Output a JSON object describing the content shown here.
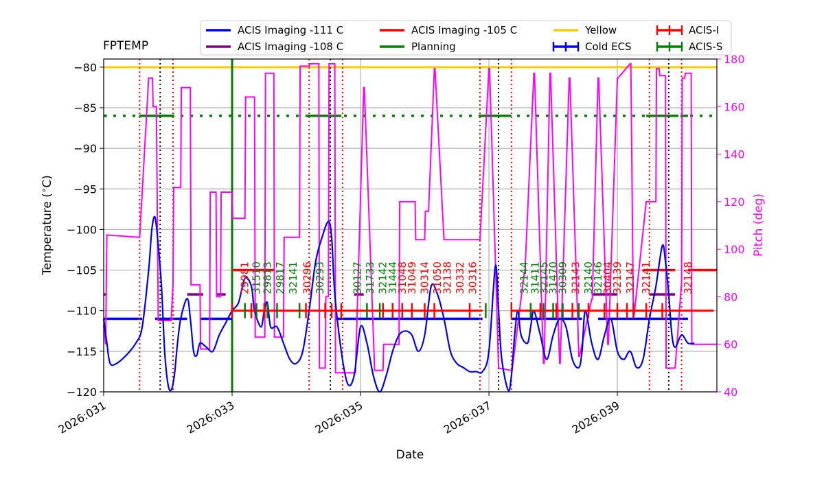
{
  "chart_data": {
    "type": "line",
    "title": "FPTEMP",
    "xlabel": "Date",
    "ylabel": "Temperature ($^\\circ$C)",
    "y2label": "Pitch (deg)",
    "xlim": [
      31.0,
      40.55
    ],
    "ylim": [
      -120,
      -79
    ],
    "y2lim": [
      40,
      180
    ],
    "x_ticks": [
      {
        "value": 31,
        "label": "2026:031"
      },
      {
        "value": 33,
        "label": "2026:033"
      },
      {
        "value": 35,
        "label": "2026:035"
      },
      {
        "value": 37,
        "label": "2026:037"
      },
      {
        "value": 39,
        "label": "2026:039"
      }
    ],
    "y_ticks": [
      -80,
      -85,
      -90,
      -95,
      -100,
      -105,
      -110,
      -115,
      -120
    ],
    "y2_ticks": [
      40,
      60,
      80,
      100,
      120,
      140,
      160,
      180
    ],
    "colors": {
      "temperature": "#0000ee",
      "pitch": "#ff00ff",
      "yellow": "#ffcc00",
      "planning": "#008000",
      "acis_111": "#0000ee",
      "acis_108": "#800080",
      "acis_105": "#ff0000",
      "acis_i": "#ff0000",
      "acis_s": "#008000",
      "grid": "#b0b0b0"
    },
    "legend": [
      {
        "label": "ACIS Imaging -111 C",
        "color": "#0000ee",
        "style": "line"
      },
      {
        "label": "ACIS Imaging -108 C",
        "color": "#800080",
        "style": "line"
      },
      {
        "label": "ACIS Imaging -105 C",
        "color": "#ff0000",
        "style": "line"
      },
      {
        "label": "Planning",
        "color": "#008000",
        "style": "line"
      },
      {
        "label": "Yellow",
        "color": "#ffcc00",
        "style": "line"
      },
      {
        "label": "Cold ECS",
        "color": "#0000ee",
        "style": "errorbar"
      },
      {
        "label": "ACIS-I",
        "color": "#ff0000",
        "style": "errorbar"
      },
      {
        "label": "ACIS-S",
        "color": "#008000",
        "style": "errorbar"
      }
    ],
    "yellow_limit": -80,
    "planning_limit_vline": 33.0,
    "temperature_series": {
      "name": "FPTEMP",
      "x": [
        31.0,
        31.05,
        31.1,
        31.2,
        31.35,
        31.5,
        31.6,
        31.7,
        31.75,
        31.8,
        31.85,
        31.9,
        31.95,
        32.0,
        32.05,
        32.1,
        32.15,
        32.2,
        32.3,
        32.35,
        32.4,
        32.45,
        32.5,
        32.6,
        32.7,
        32.8,
        32.9,
        33.0,
        33.1,
        33.2,
        33.3,
        33.35,
        33.45,
        33.5,
        33.55,
        33.6,
        33.7,
        33.8,
        33.9,
        34.0,
        34.1,
        34.2,
        34.3,
        34.4,
        34.5,
        34.55,
        34.6,
        34.7,
        34.8,
        34.9,
        35.0,
        35.1,
        35.2,
        35.3,
        35.4,
        35.5,
        35.6,
        35.7,
        35.8,
        35.9,
        36.0,
        36.1,
        36.2,
        36.3,
        36.4,
        36.5,
        36.6,
        36.7,
        36.8,
        36.9,
        37.0,
        37.1,
        37.15,
        37.2,
        37.3,
        37.35,
        37.4,
        37.45,
        37.5,
        37.6,
        37.65,
        37.7,
        37.8,
        37.9,
        38.0,
        38.1,
        38.2,
        38.3,
        38.4,
        38.45,
        38.5,
        38.6,
        38.7,
        38.8,
        38.9,
        39.0,
        39.1,
        39.2,
        39.3,
        39.4,
        39.5,
        39.6,
        39.7,
        39.75,
        39.8,
        39.85,
        39.9,
        40.0,
        40.1,
        40.2
      ],
      "y": [
        -111,
        -114,
        -116.5,
        -116.5,
        -115.5,
        -114,
        -112,
        -105,
        -100,
        -98.5,
        -102,
        -107,
        -115,
        -119,
        -119.8,
        -118,
        -114,
        -111,
        -108.5,
        -111,
        -115,
        -115.5,
        -114,
        -114.5,
        -115,
        -113,
        -111.5,
        -110,
        -109,
        -106,
        -107,
        -110,
        -112,
        -110,
        -109,
        -112,
        -112,
        -114,
        -116,
        -116.5,
        -115,
        -110,
        -104,
        -101,
        -99,
        -101,
        -108,
        -115,
        -119,
        -118,
        -112,
        -114,
        -118,
        -120,
        -118,
        -115,
        -113,
        -112.5,
        -113,
        -115,
        -113,
        -107,
        -108,
        -111,
        -115,
        -116.5,
        -117,
        -117.5,
        -117.5,
        -117.5,
        -115,
        -104.5,
        -110,
        -116,
        -119.8,
        -118,
        -113,
        -110,
        -113,
        -114,
        -112,
        -110,
        -113,
        -116,
        -113,
        -111,
        -112,
        -116,
        -117,
        -115,
        -110,
        -114,
        -116,
        -113,
        -111,
        -115,
        -116,
        -115,
        -117,
        -116,
        -111,
        -107,
        -102,
        -104,
        -108,
        -113,
        -114.5,
        -113,
        -114,
        -114
      ]
    },
    "pitch_series": {
      "name": "Pitch",
      "x": [
        31.0,
        31.03,
        31.05,
        31.55,
        31.56,
        31.7,
        31.72,
        31.76,
        31.77,
        31.8,
        31.82,
        31.85,
        31.9,
        32.0,
        32.05,
        32.08,
        32.09,
        32.2,
        32.21,
        32.35,
        32.36,
        32.5,
        32.51,
        32.65,
        32.66,
        32.75,
        32.76,
        32.82,
        32.83,
        32.84,
        33.0,
        33.01,
        33.2,
        33.21,
        33.35,
        33.36,
        33.5,
        33.51,
        33.52,
        33.65,
        33.66,
        33.8,
        33.81,
        33.85,
        34.05,
        34.06,
        34.2,
        34.21,
        34.35,
        34.36,
        34.45,
        34.46,
        34.5,
        34.51,
        34.6,
        34.61,
        34.7,
        34.72,
        34.73,
        34.9,
        34.92,
        35.05,
        35.06,
        35.22,
        35.24,
        35.35,
        35.36,
        35.6,
        35.61,
        35.85,
        35.86,
        36.0,
        36.01,
        36.05,
        36.06,
        36.15,
        36.16,
        36.3,
        36.85,
        36.86,
        37.0,
        37.01,
        37.15,
        37.16,
        37.35,
        37.36,
        37.55,
        37.56,
        37.7,
        37.71,
        37.85,
        37.86,
        37.95,
        37.96,
        38.1,
        38.11,
        38.25,
        38.26,
        38.4,
        38.41,
        38.6,
        38.61,
        38.7,
        38.71,
        38.85,
        38.86,
        39.0,
        39.01,
        39.2,
        39.21,
        39.25,
        39.26,
        39.45,
        39.46,
        39.55,
        39.56,
        39.6,
        39.61,
        39.65,
        39.66,
        39.75,
        39.76,
        39.85,
        39.86,
        39.9,
        40.0,
        40.01,
        40.05,
        40.06,
        40.15,
        40.16,
        40.55
      ],
      "y": [
        68,
        60,
        106,
        105,
        105,
        172,
        172,
        172,
        160,
        160,
        160,
        70,
        70,
        70,
        70,
        85,
        126,
        126,
        168,
        168,
        85,
        85,
        58,
        58,
        124,
        124,
        80,
        80,
        124,
        124,
        124,
        113,
        113,
        164,
        164,
        63,
        63,
        63,
        174,
        174,
        63,
        63,
        105,
        105,
        105,
        177,
        177,
        178,
        178,
        50,
        50,
        80,
        80,
        178,
        178,
        48,
        48,
        48,
        48,
        48,
        48,
        168,
        168,
        49,
        49,
        49,
        60,
        60,
        120,
        120,
        104,
        104,
        116,
        116,
        116,
        176,
        176,
        104,
        104,
        104,
        176,
        176,
        50,
        50,
        49,
        49,
        90,
        90,
        174,
        174,
        52,
        52,
        174,
        174,
        52,
        52,
        172,
        172,
        55,
        55,
        79,
        79,
        172,
        172,
        60,
        60,
        172,
        172,
        178,
        178,
        72,
        72,
        120,
        120,
        120,
        120,
        120,
        176,
        176,
        173,
        173,
        50,
        50,
        50,
        50,
        86,
        172,
        172,
        174,
        174,
        60,
        60
      ]
    },
    "acis_111_segments": [
      [
        31.0,
        31.6
      ],
      [
        31.8,
        32.3
      ],
      [
        32.5,
        33.0
      ],
      [
        34.6,
        36.9
      ],
      [
        37.35,
        38.45
      ],
      [
        38.7,
        40.1
      ]
    ],
    "acis_108_segments": [
      [
        31.0,
        31.05
      ],
      [
        32.3,
        32.55
      ],
      [
        32.75,
        32.9
      ],
      [
        34.9,
        35.05
      ],
      [
        38.6,
        39.0
      ],
      [
        39.5,
        39.9
      ]
    ],
    "acis_105_segments": [
      [
        33.0,
        33.65
      ],
      [
        39.4,
        39.9
      ],
      [
        40.1,
        40.55
      ]
    ],
    "planning_segments": [
      [
        31.0,
        31.05
      ],
      [
        31.55,
        32.1
      ],
      [
        34.15,
        34.7
      ],
      [
        36.85,
        37.35
      ],
      [
        39.45,
        39.95
      ],
      [
        40.0,
        40.1
      ]
    ],
    "planning_dotted_range": [
      31.0,
      40.5
    ],
    "yellow_vlines_red": [
      31.56,
      32.08,
      34.2,
      34.72,
      36.86,
      37.35,
      39.5,
      40.0
    ],
    "black_vlines": [
      31.88,
      34.53,
      37.15,
      39.8
    ],
    "acis_i_span": [
      33.0,
      36.9,
      37.35,
      40.5
    ],
    "acis_i_ticks": [
      33.0,
      33.3,
      33.5,
      34.15,
      34.45,
      34.55,
      34.7,
      35.35,
      35.5,
      35.65,
      35.8,
      36.0,
      36.15,
      36.7,
      37.35,
      37.65,
      37.8,
      38.05,
      38.3,
      38.55,
      38.8,
      39.0,
      39.15,
      39.25,
      39.45,
      39.7
    ],
    "acis_s_ticks": [
      33.2,
      33.38,
      33.55,
      33.7,
      34.05,
      35.1,
      35.3,
      36.95,
      37.65,
      37.85,
      38.0,
      38.15,
      38.4
    ],
    "obsids": [
      {
        "x": 33.2,
        "label": "29981",
        "color": "#ff0000"
      },
      {
        "x": 33.38,
        "label": "31510",
        "color": "#008000"
      },
      {
        "x": 33.55,
        "label": "29813",
        "color": "#008000"
      },
      {
        "x": 33.75,
        "label": "29817",
        "color": "#008000"
      },
      {
        "x": 33.95,
        "label": "32141",
        "color": "#008000"
      },
      {
        "x": 34.17,
        "label": "30296",
        "color": "#ff0000"
      },
      {
        "x": 34.37,
        "label": "30293",
        "color": "#008000"
      },
      {
        "x": 34.95,
        "label": "30127",
        "color": "#008000"
      },
      {
        "x": 35.15,
        "label": "31733",
        "color": "#008000"
      },
      {
        "x": 35.35,
        "label": "32142",
        "color": "#008000"
      },
      {
        "x": 35.5,
        "label": "31444",
        "color": "#008000"
      },
      {
        "x": 35.65,
        "label": "31048",
        "color": "#ff0000"
      },
      {
        "x": 35.8,
        "label": "31049",
        "color": "#ff0000"
      },
      {
        "x": 36.0,
        "label": "30314",
        "color": "#ff0000"
      },
      {
        "x": 36.2,
        "label": "31050",
        "color": "#ff0000"
      },
      {
        "x": 36.35,
        "label": "32138",
        "color": "#ff0000"
      },
      {
        "x": 36.55,
        "label": "30332",
        "color": "#ff0000"
      },
      {
        "x": 36.75,
        "label": "30316",
        "color": "#ff0000"
      },
      {
        "x": 37.55,
        "label": "32144",
        "color": "#008000"
      },
      {
        "x": 37.72,
        "label": "31411",
        "color": "#008000"
      },
      {
        "x": 37.86,
        "label": "32145",
        "color": "#008000"
      },
      {
        "x": 38.0,
        "label": "31470",
        "color": "#008000"
      },
      {
        "x": 38.15,
        "label": "30309",
        "color": "#008000"
      },
      {
        "x": 38.35,
        "label": "32143",
        "color": "#ff0000"
      },
      {
        "x": 38.55,
        "label": "32140",
        "color": "#008000"
      },
      {
        "x": 38.7,
        "label": "32146",
        "color": "#008000"
      },
      {
        "x": 38.85,
        "label": "30404",
        "color": "#ff0000"
      },
      {
        "x": 39.0,
        "label": "32139",
        "color": "#ff0000"
      },
      {
        "x": 39.2,
        "label": "32147",
        "color": "#ff0000"
      },
      {
        "x": 39.45,
        "label": "32141",
        "color": "#ff0000"
      },
      {
        "x": 40.1,
        "label": "32148",
        "color": "#ff0000"
      }
    ]
  }
}
